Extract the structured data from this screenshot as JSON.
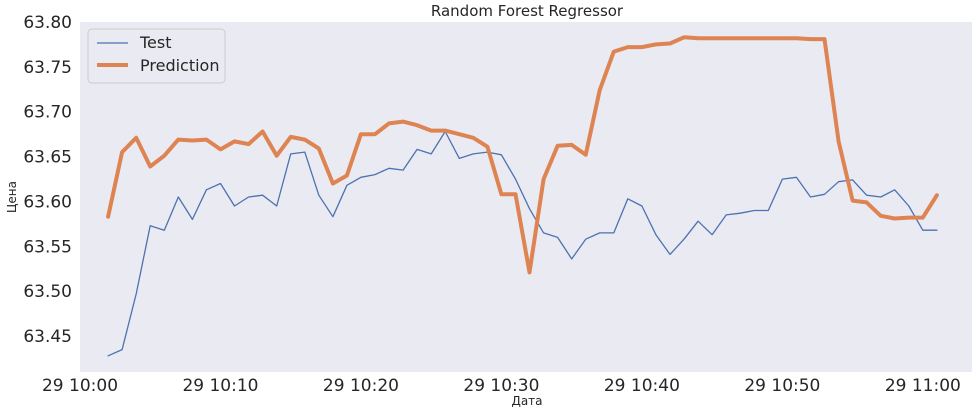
{
  "chart_data": {
    "type": "line",
    "title": "Random Forest Regressor",
    "xlabel": "Дата",
    "ylabel": "Цена",
    "x_ticks": [
      "29 10:00",
      "29 10:10",
      "29 10:20",
      "29 10:30",
      "29 10:40",
      "29 10:50",
      "29 11:00"
    ],
    "y_ticks": [
      "63.45",
      "63.50",
      "63.55",
      "63.60",
      "63.65",
      "63.70",
      "63.75",
      "63.80"
    ],
    "xlim": [
      "10:00",
      "11:03.5"
    ],
    "ylim": [
      63.41,
      63.8
    ],
    "grid": false,
    "background": "#eaeaf2",
    "legend": {
      "position": "top-left"
    },
    "series": [
      {
        "name": "Test",
        "color": "#4c72b0",
        "x": [
          "10:02",
          "10:03",
          "10:04",
          "10:05",
          "10:06",
          "10:07",
          "10:08",
          "10:09",
          "10:10",
          "10:11",
          "10:12",
          "10:13",
          "10:14",
          "10:15",
          "10:16",
          "10:17",
          "10:18",
          "10:19",
          "10:20",
          "10:21",
          "10:22",
          "10:23",
          "10:24",
          "10:25",
          "10:26",
          "10:27",
          "10:28",
          "10:29",
          "10:30",
          "10:31",
          "10:32",
          "10:33",
          "10:34",
          "10:35",
          "10:36",
          "10:37",
          "10:38",
          "10:39",
          "10:40",
          "10:41",
          "10:42",
          "10:43",
          "10:44",
          "10:45",
          "10:46",
          "10:47",
          "10:48",
          "10:49",
          "10:50",
          "10:51",
          "10:52",
          "10:53",
          "10:54",
          "10:55",
          "10:56",
          "10:57",
          "10:58",
          "10:59",
          "11:00",
          "11:01"
        ],
        "values": [
          63.428,
          63.435,
          63.497,
          63.573,
          63.568,
          63.605,
          63.58,
          63.613,
          63.62,
          63.595,
          63.605,
          63.607,
          63.595,
          63.653,
          63.655,
          63.607,
          63.583,
          63.618,
          63.627,
          63.63,
          63.637,
          63.635,
          63.658,
          63.653,
          63.678,
          63.648,
          63.653,
          63.655,
          63.652,
          63.625,
          63.592,
          63.565,
          63.56,
          63.536,
          63.558,
          63.565,
          63.565,
          63.603,
          63.595,
          63.563,
          63.541,
          63.558,
          63.578,
          63.563,
          63.585,
          63.587,
          63.59,
          63.59,
          63.625,
          63.627,
          63.605,
          63.608,
          63.622,
          63.624,
          63.607,
          63.605,
          63.613,
          63.595,
          63.568,
          63.568
        ]
      },
      {
        "name": "Prediction",
        "color": "#dd8452",
        "x": [
          "10:02",
          "10:03",
          "10:04",
          "10:05",
          "10:06",
          "10:07",
          "10:08",
          "10:09",
          "10:10",
          "10:11",
          "10:12",
          "10:13",
          "10:14",
          "10:15",
          "10:16",
          "10:17",
          "10:18",
          "10:19",
          "10:20",
          "10:21",
          "10:22",
          "10:23",
          "10:24",
          "10:25",
          "10:26",
          "10:27",
          "10:28",
          "10:29",
          "10:30",
          "10:31",
          "10:32",
          "10:33",
          "10:34",
          "10:35",
          "10:36",
          "10:37",
          "10:38",
          "10:39",
          "10:40",
          "10:41",
          "10:42",
          "10:43",
          "10:44",
          "10:45",
          "10:46",
          "10:47",
          "10:48",
          "10:49",
          "10:50",
          "10:51",
          "10:52",
          "10:53",
          "10:54",
          "10:55",
          "10:56",
          "10:57",
          "10:58",
          "10:59",
          "11:00",
          "11:01"
        ],
        "values": [
          63.583,
          63.655,
          63.671,
          63.639,
          63.651,
          63.669,
          63.668,
          63.669,
          63.658,
          63.667,
          63.664,
          63.678,
          63.651,
          63.672,
          63.669,
          63.659,
          63.62,
          63.629,
          63.675,
          63.675,
          63.687,
          63.689,
          63.685,
          63.679,
          63.679,
          63.675,
          63.671,
          63.661,
          63.608,
          63.608,
          63.521,
          63.625,
          63.662,
          63.663,
          63.652,
          63.724,
          63.767,
          63.772,
          63.772,
          63.775,
          63.776,
          63.783,
          63.782,
          63.782,
          63.782,
          63.782,
          63.782,
          63.782,
          63.782,
          63.782,
          63.781,
          63.781,
          63.667,
          63.601,
          63.599,
          63.584,
          63.581,
          63.582,
          63.582,
          63.607
        ]
      }
    ]
  }
}
